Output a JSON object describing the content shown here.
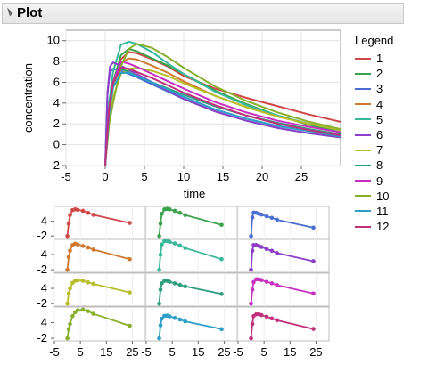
{
  "header": {
    "title": "Plot"
  },
  "legend": {
    "title": "Legend"
  },
  "chart_data": [
    {
      "type": "line",
      "xlabel": "time",
      "ylabel": "concentration",
      "xlim": [
        -5,
        30
      ],
      "ylim": [
        -2,
        11
      ],
      "xticks": [
        -5,
        0,
        5,
        10,
        15,
        20,
        25
      ],
      "yticks": [
        -2,
        0,
        2,
        4,
        6,
        8,
        10
      ],
      "grid": true,
      "legend_position": "right",
      "series": [
        {
          "name": "1",
          "color": "#d04848",
          "x": [
            0,
            0.5,
            1,
            2,
            3,
            4,
            6,
            8,
            10,
            14,
            18,
            22,
            26,
            30
          ],
          "y": [
            -2,
            3,
            5.5,
            8.2,
            8.9,
            8.8,
            8.2,
            7.5,
            6.6,
            5.4,
            4.5,
            3.7,
            2.9,
            2.2
          ]
        },
        {
          "name": "2",
          "color": "#3aa24a",
          "x": [
            0,
            0.5,
            1,
            2,
            3,
            4,
            6,
            8,
            10,
            14,
            18,
            22,
            26,
            30
          ],
          "y": [
            -2,
            3.5,
            6,
            8.6,
            9.2,
            9.0,
            8.3,
            7.6,
            6.8,
            5.2,
            3.9,
            2.8,
            1.9,
            1.2
          ]
        },
        {
          "name": "3",
          "color": "#4a6fd0",
          "x": [
            0,
            0.3,
            0.6,
            1,
            2,
            3,
            4,
            6,
            8,
            10,
            14,
            18,
            22,
            26,
            30
          ],
          "y": [
            -2,
            5,
            7,
            7.3,
            7.1,
            6.8,
            6.5,
            5.8,
            5.1,
            4.4,
            3.2,
            2.3,
            1.6,
            1.1,
            0.7
          ]
        },
        {
          "name": "4",
          "color": "#d07a30",
          "x": [
            0,
            0.5,
            1,
            2,
            3,
            4,
            6,
            8,
            10,
            14,
            18,
            22,
            26,
            30
          ],
          "y": [
            -2,
            3,
            5.5,
            7.9,
            8.3,
            8.2,
            7.6,
            6.9,
            6.1,
            4.7,
            3.6,
            2.7,
            2.0,
            1.4
          ]
        },
        {
          "name": "5",
          "color": "#38b89a",
          "x": [
            0,
            0.5,
            1,
            2,
            3,
            4,
            6,
            8,
            10,
            14,
            18,
            22,
            26,
            30
          ],
          "y": [
            -2,
            4,
            7,
            9.6,
            9.9,
            9.7,
            8.9,
            7.8,
            6.8,
            5.1,
            3.8,
            2.8,
            2.0,
            1.4
          ]
        },
        {
          "name": "6",
          "color": "#8b3fc8",
          "x": [
            0,
            0.3,
            0.6,
            1,
            2,
            3,
            4,
            6,
            8,
            10,
            14,
            18,
            22,
            26,
            30
          ],
          "y": [
            -2,
            5,
            7.5,
            7.9,
            7.6,
            7.2,
            6.8,
            6.0,
            5.2,
            4.4,
            3.2,
            2.3,
            1.6,
            1.1,
            0.7
          ]
        },
        {
          "name": "7",
          "color": "#b8be2a",
          "x": [
            0,
            0.5,
            1,
            2,
            3,
            4,
            6,
            8,
            10,
            14,
            18,
            22,
            26,
            30
          ],
          "y": [
            -2,
            2.5,
            4.5,
            6.8,
            7.3,
            7.4,
            7.1,
            6.6,
            5.9,
            4.7,
            3.6,
            2.7,
            2.0,
            1.4
          ]
        },
        {
          "name": "8",
          "color": "#2e9e80",
          "x": [
            0,
            0.5,
            1,
            2,
            3,
            4,
            6,
            8,
            10,
            14,
            18,
            22,
            26,
            30
          ],
          "y": [
            -2,
            3.5,
            6,
            7.3,
            7.0,
            6.6,
            6.0,
            5.4,
            4.8,
            3.7,
            2.8,
            2.1,
            1.5,
            1.0
          ]
        },
        {
          "name": "9",
          "color": "#c62fc0",
          "x": [
            0,
            0.5,
            1,
            2,
            3,
            4,
            6,
            8,
            10,
            14,
            18,
            22,
            26,
            30
          ],
          "y": [
            -2,
            3.5,
            6,
            8.0,
            7.8,
            7.5,
            6.8,
            6.1,
            5.4,
            4.1,
            3.1,
            2.3,
            1.7,
            1.2
          ]
        },
        {
          "name": "10",
          "color": "#88b02c",
          "x": [
            0,
            0.5,
            1,
            2,
            3,
            4,
            6,
            8,
            10,
            14,
            18,
            22,
            26,
            30
          ],
          "y": [
            -2,
            2,
            4,
            7.5,
            9.2,
            9.7,
            9.3,
            8.4,
            7.4,
            5.6,
            4.2,
            3.1,
            2.2,
            1.5
          ]
        },
        {
          "name": "11",
          "color": "#2c9ec8",
          "x": [
            0,
            0.5,
            1,
            2,
            3,
            4,
            6,
            8,
            10,
            14,
            18,
            22,
            26,
            30
          ],
          "y": [
            -2,
            3,
            5.5,
            6.9,
            6.9,
            6.6,
            6.0,
            5.3,
            4.6,
            3.4,
            2.5,
            1.8,
            1.3,
            0.8
          ]
        },
        {
          "name": "12",
          "color": "#c0307a",
          "x": [
            0,
            0.5,
            1,
            2,
            3,
            4,
            6,
            8,
            10,
            14,
            18,
            22,
            26,
            30
          ],
          "y": [
            -2,
            3.5,
            6,
            7.4,
            7.3,
            7.0,
            6.4,
            5.7,
            5.0,
            3.8,
            2.8,
            2.0,
            1.4,
            0.9
          ]
        }
      ]
    },
    {
      "type": "scatter",
      "layout": "small-multiples",
      "xlim": [
        -5,
        30
      ],
      "ylim": [
        -3,
        10
      ],
      "xticks": [
        -5,
        5,
        15,
        25
      ],
      "yticks": [
        -2,
        4
      ],
      "panels": [
        {
          "row": 0,
          "col": 0,
          "color": "#d04848",
          "x": [
            0,
            0.5,
            1,
            2,
            3,
            4,
            6,
            8,
            10,
            24
          ],
          "y": [
            -2,
            3,
            6.5,
            8.5,
            8.8,
            8.6,
            8.2,
            7.4,
            6.6,
            3.3
          ]
        },
        {
          "row": 0,
          "col": 1,
          "color": "#3aa24a",
          "x": [
            0,
            0.5,
            1,
            2,
            3,
            4,
            6,
            8,
            10,
            24
          ],
          "y": [
            -2,
            3,
            7,
            8.8,
            9.0,
            8.8,
            8.2,
            7.4,
            6.5,
            2.5
          ]
        },
        {
          "row": 0,
          "col": 2,
          "color": "#4a6fd0",
          "x": [
            0,
            0.5,
            1,
            2,
            3,
            4,
            6,
            8,
            10,
            24
          ],
          "y": [
            -2,
            5.5,
            7.5,
            7.4,
            7.0,
            6.7,
            6.0,
            5.4,
            4.6,
            1.4
          ]
        },
        {
          "row": 1,
          "col": 0,
          "color": "#d07a30",
          "x": [
            0,
            0.5,
            1,
            2,
            3,
            4,
            6,
            8,
            10,
            24
          ],
          "y": [
            -2,
            3,
            5.5,
            7.8,
            8.3,
            8.0,
            7.4,
            6.8,
            6.0,
            2.2
          ]
        },
        {
          "row": 1,
          "col": 1,
          "color": "#38b89a",
          "x": [
            0,
            0.5,
            1,
            2,
            3,
            4,
            6,
            8,
            10,
            24
          ],
          "y": [
            -2,
            4,
            8,
            9.3,
            9.4,
            9.0,
            8.4,
            7.6,
            6.6,
            2.2
          ]
        },
        {
          "row": 1,
          "col": 2,
          "color": "#8b3fc8",
          "x": [
            0,
            0.5,
            1,
            2,
            3,
            4,
            6,
            8,
            10,
            24
          ],
          "y": [
            -2,
            5.5,
            7.8,
            7.8,
            7.4,
            7.0,
            6.2,
            5.5,
            4.6,
            1.4
          ]
        },
        {
          "row": 2,
          "col": 0,
          "color": "#b8be2a",
          "x": [
            0,
            0.5,
            1,
            2,
            3,
            4,
            6,
            8,
            10,
            24
          ],
          "y": [
            -2,
            2,
            4,
            6.2,
            7.0,
            7.2,
            7.0,
            6.4,
            5.8,
            2.4
          ]
        },
        {
          "row": 2,
          "col": 1,
          "color": "#2e9e80",
          "x": [
            0,
            0.5,
            1,
            2,
            3,
            4,
            6,
            8,
            10,
            24
          ],
          "y": [
            -2,
            3.5,
            6,
            7.0,
            7.0,
            6.6,
            6.0,
            5.4,
            4.8,
            1.8
          ]
        },
        {
          "row": 2,
          "col": 2,
          "color": "#c62fc0",
          "x": [
            0,
            0.5,
            1,
            2,
            3,
            4,
            6,
            8,
            10,
            24
          ],
          "y": [
            -2,
            3.5,
            6.5,
            7.6,
            7.6,
            7.3,
            6.6,
            6.0,
            5.3,
            2.0
          ]
        },
        {
          "row": 3,
          "col": 0,
          "color": "#88b02c",
          "x": [
            0,
            0.5,
            1,
            2,
            3,
            4,
            6,
            8,
            10,
            24
          ],
          "y": [
            -2,
            1.5,
            3.5,
            6.5,
            8.0,
            8.8,
            9.0,
            8.4,
            7.4,
            2.8
          ]
        },
        {
          "row": 3,
          "col": 1,
          "color": "#2c9ec8",
          "x": [
            0,
            0.5,
            1,
            2,
            3,
            4,
            6,
            8,
            10,
            24
          ],
          "y": [
            -2,
            3,
            5.5,
            6.6,
            6.7,
            6.4,
            5.8,
            5.2,
            4.5,
            1.5
          ]
        },
        {
          "row": 3,
          "col": 2,
          "color": "#c0307a",
          "x": [
            0,
            0.5,
            1,
            2,
            3,
            4,
            6,
            8,
            10,
            24
          ],
          "y": [
            -2,
            3.5,
            6.5,
            7.2,
            7.2,
            6.9,
            6.3,
            5.6,
            4.9,
            1.6
          ]
        }
      ]
    }
  ]
}
